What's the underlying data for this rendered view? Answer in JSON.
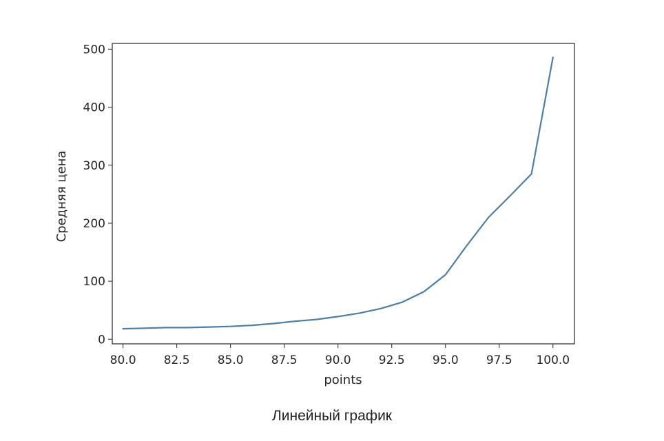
{
  "caption": "Линейный график",
  "chart_data": {
    "type": "line",
    "title": "",
    "xlabel": "points",
    "ylabel": "Средняя цена",
    "xlim": [
      79.5,
      101.0
    ],
    "ylim": [
      -8,
      510
    ],
    "x_ticks": [
      "80.0",
      "82.5",
      "85.0",
      "87.5",
      "90.0",
      "92.5",
      "95.0",
      "97.5",
      "100.0"
    ],
    "y_ticks": [
      "0",
      "100",
      "200",
      "300",
      "400",
      "500"
    ],
    "grid": false,
    "legend": "none",
    "color": "#4c7ea8",
    "series": [
      {
        "x": [
          80,
          81,
          82,
          83,
          84,
          85,
          86,
          87,
          88,
          89,
          90,
          91,
          92,
          93,
          94,
          95,
          96,
          97,
          98,
          99,
          100
        ],
        "y": [
          18,
          19,
          20,
          20,
          21,
          22,
          24,
          27,
          31,
          34,
          39,
          45,
          53,
          64,
          82,
          111,
          162,
          210,
          247,
          285,
          486
        ]
      }
    ]
  }
}
